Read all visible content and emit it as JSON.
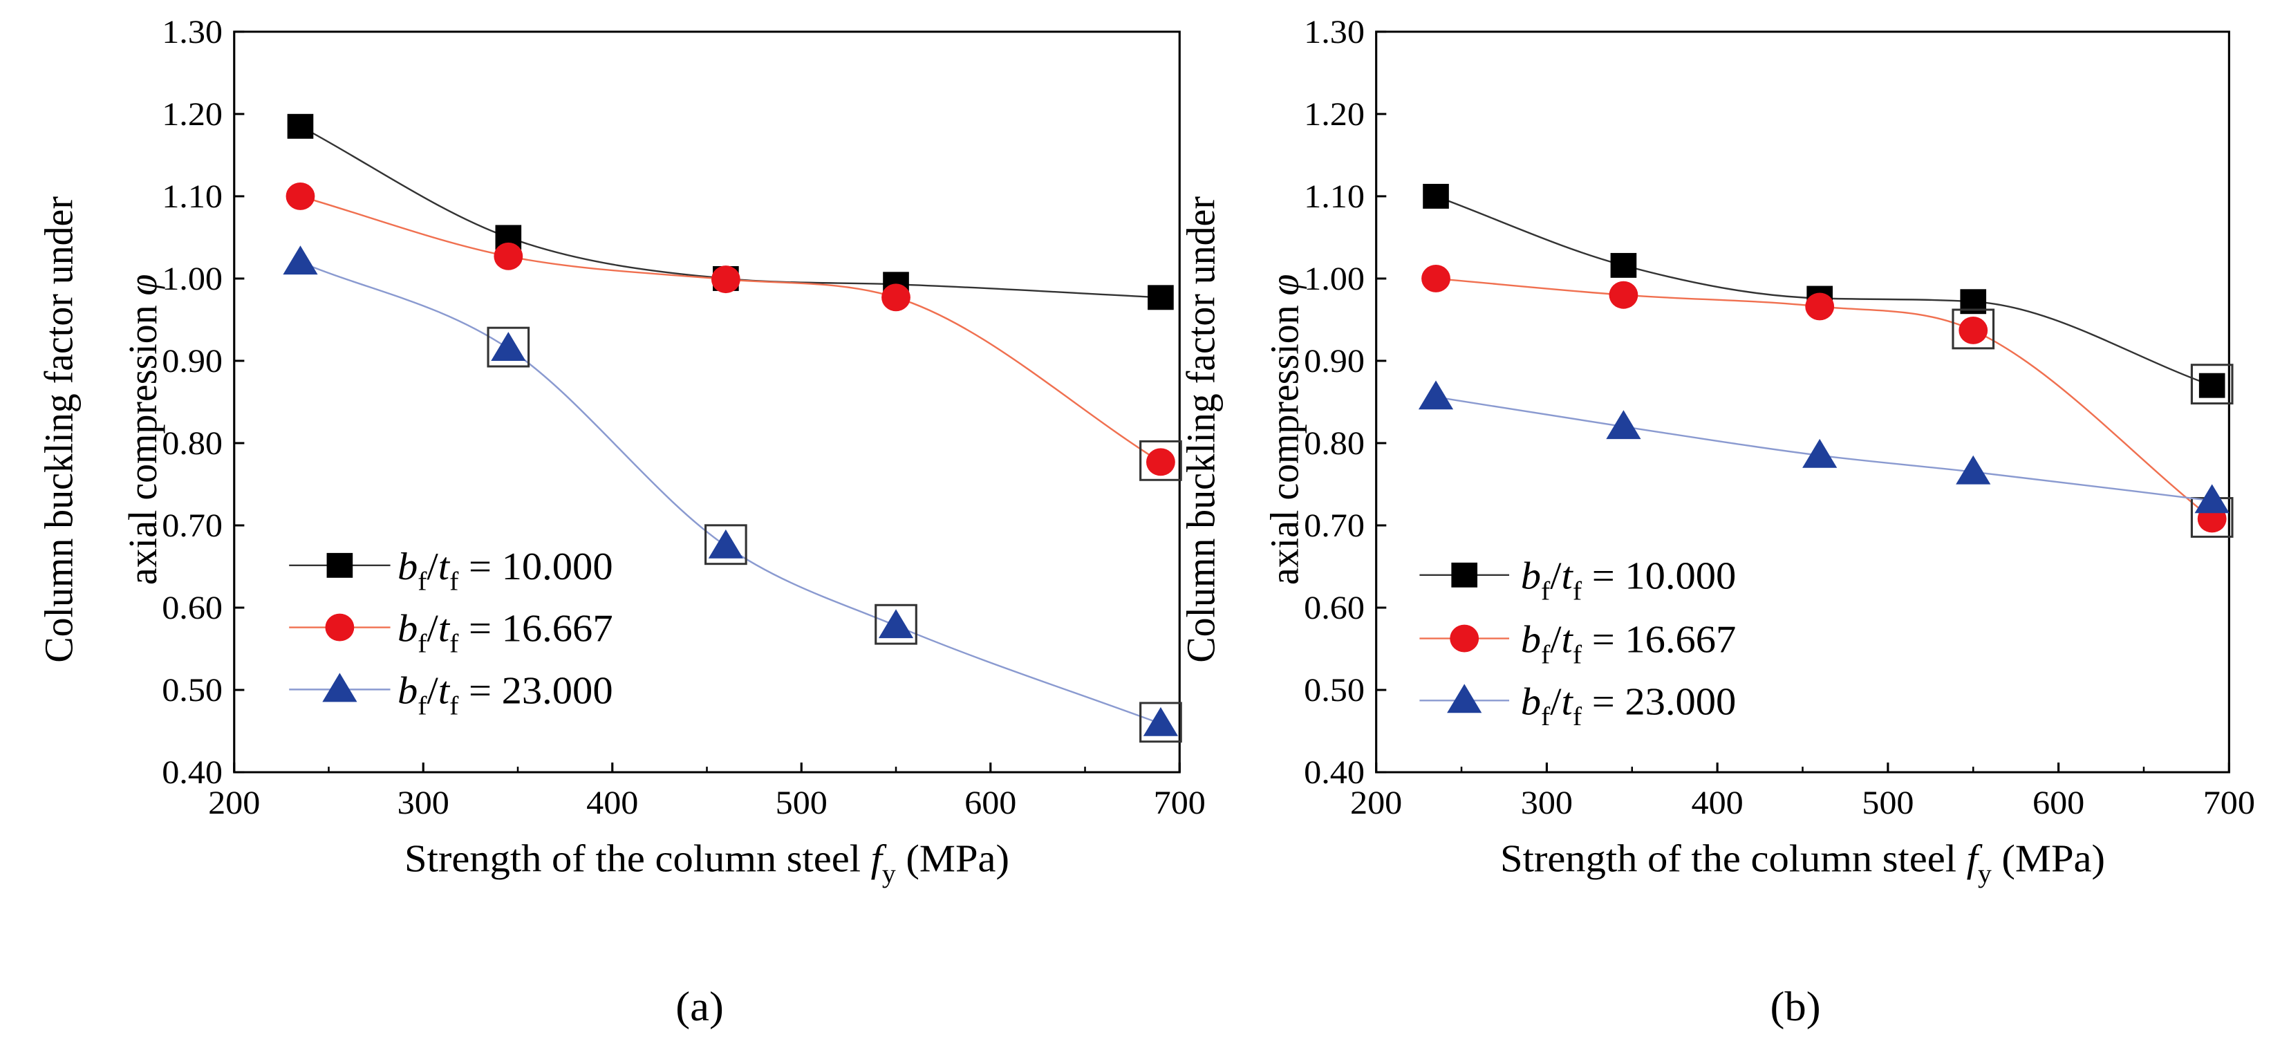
{
  "chart_data": [
    {
      "type": "line",
      "panel_label": "(a)",
      "xlabel": {
        "prefix": "Strength of the column steel ",
        "var": "f",
        "sub": "y",
        "unit": " (MPa)"
      },
      "ylabel": {
        "line1": "Column buckling factor under",
        "line2": "axial compression ",
        "var": "φ"
      },
      "xlim": [
        200,
        700
      ],
      "ylim": [
        0.4,
        1.3
      ],
      "xticks": [
        "200",
        "300",
        "400",
        "500",
        "600",
        "700"
      ],
      "yticks": [
        "0.40",
        "0.50",
        "0.60",
        "0.70",
        "0.80",
        "0.90",
        "1.00",
        "1.10",
        "1.20",
        "1.30"
      ],
      "legend_position": "bottom-left",
      "series": [
        {
          "name": "bf/tf = 10.000",
          "ratio": "10.000",
          "color": "#333333",
          "marker": "square",
          "x": [
            235,
            345,
            460,
            550,
            690
          ],
          "y": [
            1.185,
            1.05,
            1.0,
            0.993,
            0.977
          ],
          "boxed": []
        },
        {
          "name": "bf/tf = 16.667",
          "ratio": "16.667",
          "color": "#f07050",
          "marker": "circle",
          "x": [
            235,
            345,
            460,
            550,
            690
          ],
          "y": [
            1.1,
            1.027,
            0.999,
            0.977,
            0.777
          ],
          "boxed": [
            4
          ]
        },
        {
          "name": "bf/tf = 23.000",
          "ratio": "23.000",
          "color": "#8a9ad0",
          "marker": "triangle",
          "x": [
            235,
            345,
            460,
            550,
            690
          ],
          "y": [
            1.02,
            0.915,
            0.675,
            0.578,
            0.459
          ],
          "boxed": [
            1,
            2,
            3,
            4
          ]
        }
      ]
    },
    {
      "type": "line",
      "panel_label": "(b)",
      "xlabel": {
        "prefix": "Strength of the column steel ",
        "var": "f",
        "sub": "y",
        "unit": " (MPa)"
      },
      "ylabel": {
        "line1": "Column buckling factor under",
        "line2": "axial compression ",
        "var": "φ"
      },
      "xlim": [
        200,
        700
      ],
      "ylim": [
        0.4,
        1.3
      ],
      "xticks": [
        "200",
        "300",
        "400",
        "500",
        "600",
        "700"
      ],
      "yticks": [
        "0.40",
        "0.50",
        "0.60",
        "0.70",
        "0.80",
        "0.90",
        "1.00",
        "1.10",
        "1.20",
        "1.30"
      ],
      "legend_position": "bottom-left",
      "series": [
        {
          "name": "bf/tf = 10.000",
          "ratio": "10.000",
          "color": "#333333",
          "marker": "square",
          "x": [
            235,
            345,
            460,
            550,
            690
          ],
          "y": [
            1.1,
            1.016,
            0.976,
            0.972,
            0.87
          ],
          "boxed": [
            4
          ]
        },
        {
          "name": "bf/tf = 16.667",
          "ratio": "16.667",
          "color": "#f07050",
          "marker": "circle",
          "x": [
            235,
            345,
            460,
            550,
            690
          ],
          "y": [
            1.0,
            0.98,
            0.966,
            0.937,
            0.708
          ],
          "boxed": [
            3,
            4
          ]
        },
        {
          "name": "bf/tf = 23.000",
          "ratio": "23.000",
          "color": "#8a9ad0",
          "marker": "triangle",
          "x": [
            235,
            345,
            460,
            550,
            690
          ],
          "y": [
            0.856,
            0.82,
            0.785,
            0.765,
            0.73
          ],
          "boxed": []
        }
      ]
    }
  ],
  "marker_colors": {
    "square": "#000000",
    "circle": "#e8141c",
    "triangle": "#1f3f9a"
  },
  "legend_symbols": {
    "b": "b",
    "f": "f",
    "t": "t",
    "eq": " = "
  }
}
